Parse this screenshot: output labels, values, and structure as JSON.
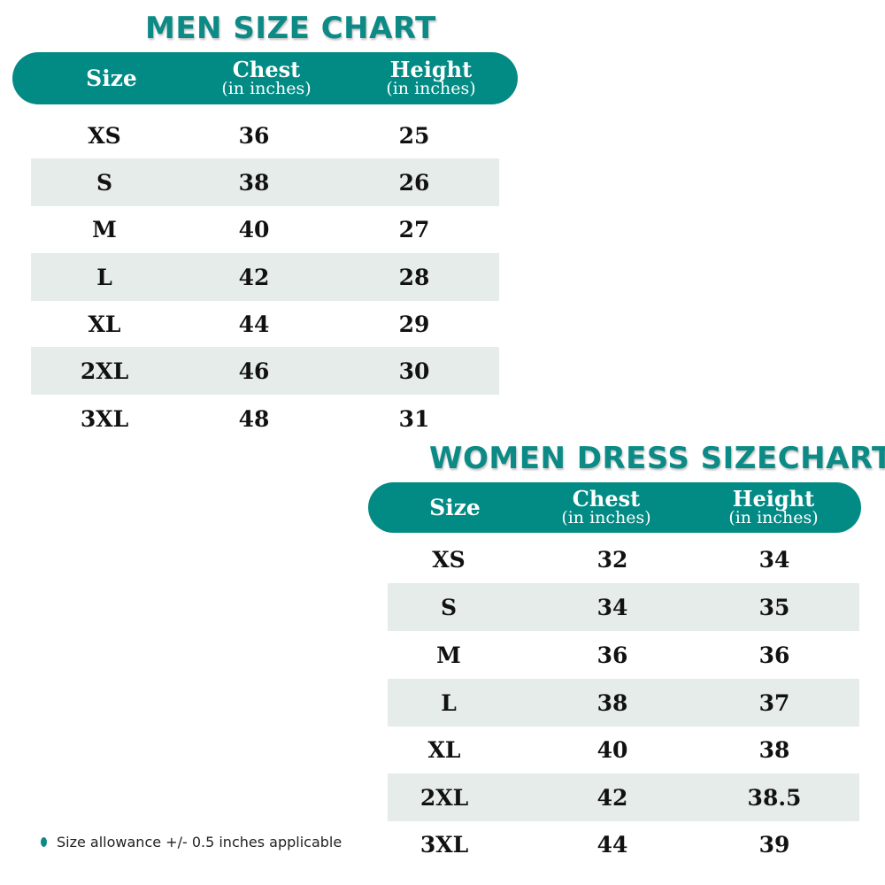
{
  "men": {
    "title": "MEN SIZE CHART",
    "headers": {
      "size": "Size",
      "chest": "Chest",
      "chest_unit": "(in inches)",
      "height": "Height",
      "height_unit": "(in inches)"
    },
    "rows": [
      {
        "size": "XS",
        "chest": "36",
        "height": "25"
      },
      {
        "size": "S",
        "chest": "38",
        "height": "26"
      },
      {
        "size": "M",
        "chest": "40",
        "height": "27"
      },
      {
        "size": "L",
        "chest": "42",
        "height": "28"
      },
      {
        "size": "XL",
        "chest": "44",
        "height": "29"
      },
      {
        "size": "2XL",
        "chest": "46",
        "height": "30"
      },
      {
        "size": "3XL",
        "chest": "48",
        "height": "31"
      }
    ]
  },
  "women": {
    "title": "WOMEN DRESS SIZECHART",
    "headers": {
      "size": "Size",
      "chest": "Chest",
      "chest_unit": "(in inches)",
      "height": "Height",
      "height_unit": "(in inches)"
    },
    "rows": [
      {
        "size": "XS",
        "chest": "32",
        "height": "34"
      },
      {
        "size": "S",
        "chest": "34",
        "height": "35"
      },
      {
        "size": "M",
        "chest": "36",
        "height": "36"
      },
      {
        "size": "L",
        "chest": "38",
        "height": "37"
      },
      {
        "size": "XL",
        "chest": "40",
        "height": "38"
      },
      {
        "size": "2XL",
        "chest": "42",
        "height": "38.5"
      },
      {
        "size": "3XL",
        "chest": "44",
        "height": "39"
      }
    ]
  },
  "note": "Size allowance +/- 0.5 inches applicable",
  "colors": {
    "accent": "#028a84",
    "title": "#0b8a86",
    "row_shade": "#e6ecea",
    "text": "#111111"
  }
}
